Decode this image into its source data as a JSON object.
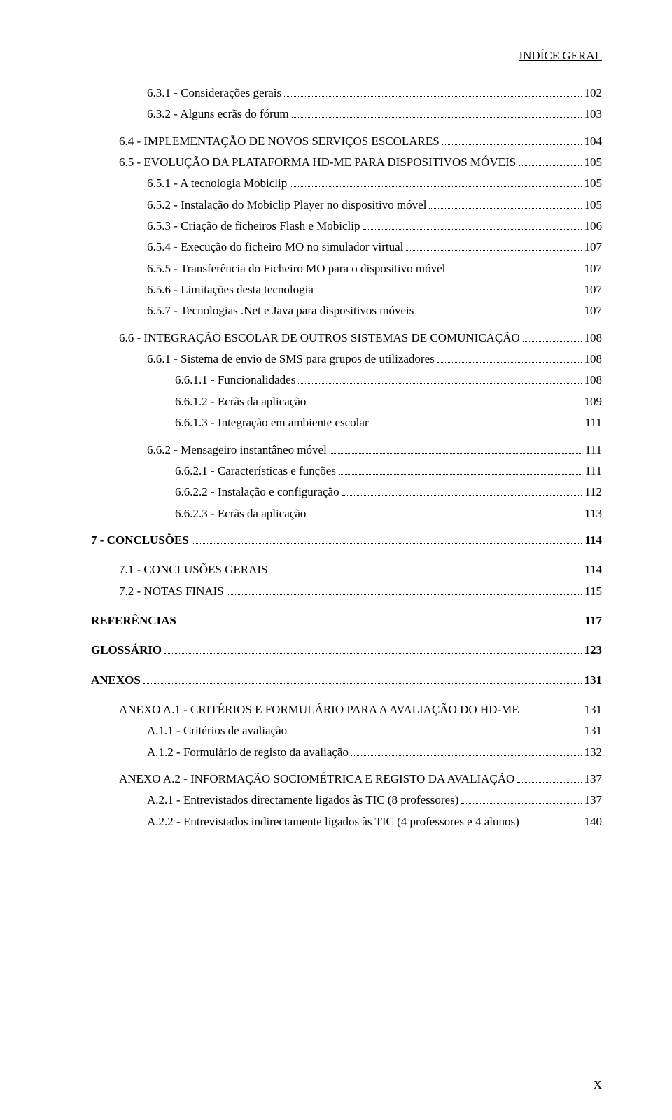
{
  "header": "INDÍCE GERAL",
  "footer": "X",
  "entries": [
    {
      "label": "6.3.1 - Considerações gerais",
      "page": "102",
      "indent": 3,
      "smallcaps": false
    },
    {
      "label": "6.3.2 - Alguns ecrãs do fórum",
      "page": "103",
      "indent": 3,
      "smallcaps": false,
      "spacerAfter": "sm"
    },
    {
      "label": "6.4 - IMPLEMENTAÇÃO DE NOVOS SERVIÇOS ESCOLARES",
      "page": "104",
      "indent": 2,
      "smallcaps": true
    },
    {
      "label": "6.5 - EVOLUÇÃO DA PLATAFORMA HD-ME PARA DISPOSITIVOS MÓVEIS",
      "page": "105",
      "indent": 2,
      "smallcaps": true
    },
    {
      "label": "6.5.1 - A tecnologia Mobiclip",
      "page": "105",
      "indent": 3,
      "smallcaps": false
    },
    {
      "label": "6.5.2 - Instalação do Mobiclip Player no dispositivo móvel",
      "page": "105",
      "indent": 3,
      "smallcaps": false
    },
    {
      "label": "6.5.3 - Criação de ficheiros Flash e Mobiclip",
      "page": "106",
      "indent": 3,
      "smallcaps": false
    },
    {
      "label": "6.5.4 - Execução do ficheiro MO no simulador virtual",
      "page": "107",
      "indent": 3,
      "smallcaps": false
    },
    {
      "label": "6.5.5 - Transferência do Ficheiro MO para o dispositivo móvel",
      "page": "107",
      "indent": 3,
      "smallcaps": false
    },
    {
      "label": "6.5.6 - Limitações desta tecnologia",
      "page": "107",
      "indent": 3,
      "smallcaps": false
    },
    {
      "label": "6.5.7 - Tecnologias .Net e Java para dispositivos móveis",
      "page": "107",
      "indent": 3,
      "smallcaps": false,
      "spacerAfter": "sm"
    },
    {
      "label": "6.6 - INTEGRAÇÃO ESCOLAR DE OUTROS SISTEMAS DE COMUNICAÇÃO",
      "page": "108",
      "indent": 2,
      "smallcaps": true
    },
    {
      "label": "6.6.1 - Sistema de envio de SMS para grupos de utilizadores",
      "page": "108",
      "indent": 3,
      "smallcaps": false
    },
    {
      "label": "6.6.1.1 - Funcionalidades",
      "page": "108",
      "indent": 4,
      "smallcaps": false
    },
    {
      "label": "6.6.1.2 - Ecrãs da aplicação",
      "page": "109",
      "indent": 4,
      "smallcaps": false
    },
    {
      "label": "6.6.1.3 - Integração em ambiente escolar",
      "page": "111",
      "indent": 4,
      "smallcaps": false,
      "spacerAfter": "sm"
    },
    {
      "label": "6.6.2 - Mensageiro instantâneo móvel",
      "page": "111",
      "indent": 3,
      "smallcaps": false
    },
    {
      "label": "6.6.2.1 - Características e funções",
      "page": "111",
      "indent": 4,
      "smallcaps": false
    },
    {
      "label": "6.6.2.2 - Instalação e configuração",
      "page": "112",
      "indent": 4,
      "smallcaps": false
    },
    {
      "label": "6.6.2.3 - Ecrãs da aplicação",
      "page": "113",
      "indent": 4,
      "smallcaps": false,
      "nodots": true
    },
    {
      "label": "7 - CONCLUSÕES",
      "page": "114",
      "indent": 0,
      "smallcaps": false,
      "bold": true,
      "spacerBefore": "sm",
      "spacerAfter": "md"
    },
    {
      "label": "7.1 - CONCLUSÕES GERAIS",
      "page": "114",
      "indent": 2,
      "smallcaps": true
    },
    {
      "label": "7.2 - NOTAS FINAIS",
      "page": "115",
      "indent": 2,
      "smallcaps": true,
      "spacerAfter": "md"
    },
    {
      "label": "REFERÊNCIAS",
      "page": "117",
      "indent": 0,
      "smallcaps": false,
      "bold": true,
      "spacerAfter": "md"
    },
    {
      "label": "GLOSSÁRIO",
      "page": "123",
      "indent": 0,
      "smallcaps": false,
      "bold": true,
      "spacerAfter": "md"
    },
    {
      "label": "ANEXOS",
      "page": "131",
      "indent": 0,
      "smallcaps": false,
      "bold": true,
      "spacerAfter": "md"
    },
    {
      "label": "ANEXO A.1 - CRITÉRIOS E FORMULÁRIO PARA A AVALIAÇÃO DO HD-ME",
      "page": "131",
      "indent": 2,
      "smallcaps": true
    },
    {
      "label": "A.1.1 - Critérios de avaliação",
      "page": "131",
      "indent": 3,
      "smallcaps": false
    },
    {
      "label": "A.1.2 - Formulário de registo da avaliação",
      "page": "132",
      "indent": 3,
      "smallcaps": false,
      "spacerAfter": "sm"
    },
    {
      "label": "ANEXO A.2 - INFORMAÇÃO SOCIOMÉTRICA E REGISTO DA AVALIAÇÃO",
      "page": "137",
      "indent": 2,
      "smallcaps": true
    },
    {
      "label": "A.2.1 - Entrevistados directamente ligados às TIC (8 professores)",
      "page": "137",
      "indent": 3,
      "smallcaps": false
    },
    {
      "label": "A.2.2 - Entrevistados indirectamente ligados às TIC (4 professores e 4 alunos)",
      "page": "140",
      "indent": 3,
      "smallcaps": false
    }
  ]
}
